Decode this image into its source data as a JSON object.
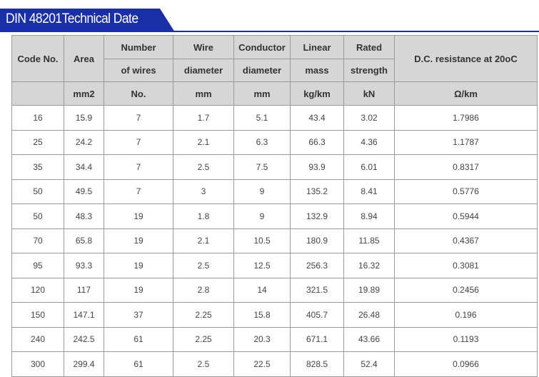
{
  "title": "DIN 48201Technical Date",
  "colors": {
    "banner": "#1a2fa6",
    "header_bg": "#d6d6d6",
    "border": "#9a9a9a"
  },
  "table": {
    "headers": {
      "code_no": "Code No.",
      "area": "Area",
      "number": "Number",
      "of_wires": "of wires",
      "wire": "Wire",
      "diameter": "diameter",
      "conductor": "Conductor",
      "diameter2": "diameter",
      "linear": "Linear",
      "mass": "mass",
      "rated": "Rated",
      "strength": "strength",
      "dc_resistance": "D.C. resistance at 20oC"
    },
    "units": {
      "area": "mm2",
      "number": "No.",
      "wire": "mm",
      "conductor": "mm",
      "mass": "kg/km",
      "strength": "kN",
      "resistance": "Ω/km"
    },
    "rows": [
      [
        "16",
        "15.9",
        "7",
        "1.7",
        "5.1",
        "43.4",
        "3.02",
        "1.7986"
      ],
      [
        "25",
        "24.2",
        "7",
        "2.1",
        "6.3",
        "66.3",
        "4.36",
        "1.1787"
      ],
      [
        "35",
        "34.4",
        "7",
        "2.5",
        "7.5",
        "93.9",
        "6.01",
        "0.8317"
      ],
      [
        "50",
        "49.5",
        "7",
        "3",
        "9",
        "135.2",
        "8.41",
        "0.5776"
      ],
      [
        "50",
        "48.3",
        "19",
        "1.8",
        "9",
        "132.9",
        "8.94",
        "0.5944"
      ],
      [
        "70",
        "65.8",
        "19",
        "2.1",
        "10.5",
        "180.9",
        "11.85",
        "0.4367"
      ],
      [
        "95",
        "93.3",
        "19",
        "2.5",
        "12.5",
        "256.3",
        "16.32",
        "0.3081"
      ],
      [
        "120",
        "117",
        "19",
        "2.8",
        "14",
        "321.5",
        "19.89",
        "0.2456"
      ],
      [
        "150",
        "147.1",
        "37",
        "2.25",
        "15.8",
        "405.7",
        "26.48",
        "0.196"
      ],
      [
        "240",
        "242.5",
        "61",
        "2.25",
        "20.3",
        "671.1",
        "43.66",
        "0.1193"
      ],
      [
        "300",
        "299.4",
        "61",
        "2.5",
        "22.5",
        "828.5",
        "52.4",
        "0.0966"
      ]
    ]
  }
}
